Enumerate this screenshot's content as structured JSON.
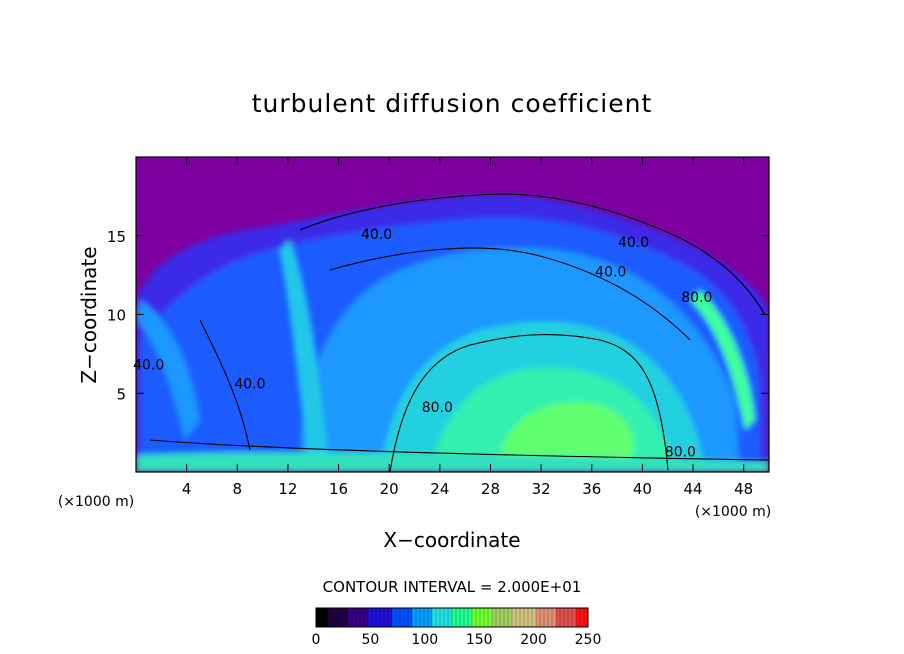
{
  "chart_data": {
    "type": "heatmap",
    "title": "turbulent diffusion coefficient",
    "xlabel": "X−coordinate",
    "ylabel": "Z−coordinate",
    "x_unit_left": "(×1000 m)",
    "x_unit_right": "(×1000 m)",
    "xlim": [
      0,
      50
    ],
    "ylim": [
      0,
      20
    ],
    "x_ticks": [
      4,
      8,
      12,
      16,
      20,
      24,
      28,
      32,
      36,
      40,
      44,
      48
    ],
    "x_tick_labels": [
      "4",
      "8",
      "12",
      "16",
      "20",
      "24",
      "28",
      "32",
      "36",
      "40",
      "44",
      "48"
    ],
    "y_ticks": [
      5,
      10,
      15
    ],
    "y_tick_labels": [
      "5",
      "10",
      "15"
    ],
    "contour_interval_text": "CONTOUR INTERVAL = 2.000E+01",
    "contour_labels": [
      {
        "text": "40.0",
        "x": 19.0,
        "z": 14.8
      },
      {
        "text": "40.0",
        "x": 39.3,
        "z": 14.3
      },
      {
        "text": "40.0",
        "x": 37.5,
        "z": 12.4
      },
      {
        "text": "80.0",
        "x": 44.3,
        "z": 10.8
      },
      {
        "text": "40.0",
        "x": 1.0,
        "z": 6.5
      },
      {
        "text": "40.0",
        "x": 9.0,
        "z": 5.3
      },
      {
        "text": "80.0",
        "x": 23.8,
        "z": 3.8
      },
      {
        "text": "80.0",
        "x": 43.0,
        "z": 1.0
      }
    ],
    "colorbar": {
      "range": [
        0,
        250
      ],
      "ticks": [
        0,
        50,
        100,
        150,
        200,
        250
      ],
      "tick_labels": [
        "0",
        "50",
        "100",
        "150",
        "200",
        "250"
      ],
      "colors": [
        "#000000",
        "#200040",
        "#3a0088",
        "#2010d8",
        "#0050ff",
        "#00a0ff",
        "#20e0e0",
        "#20ff90",
        "#70ff30",
        "#a0d060",
        "#d0c080",
        "#e09070",
        "#e05050",
        "#ff1010"
      ]
    },
    "colormap": [
      "#7f00a0",
      "#6a1ed0",
      "#3c3cf5",
      "#1f6aff",
      "#1aa0ff",
      "#20d0e8",
      "#30ffb0",
      "#70ff50"
    ]
  }
}
